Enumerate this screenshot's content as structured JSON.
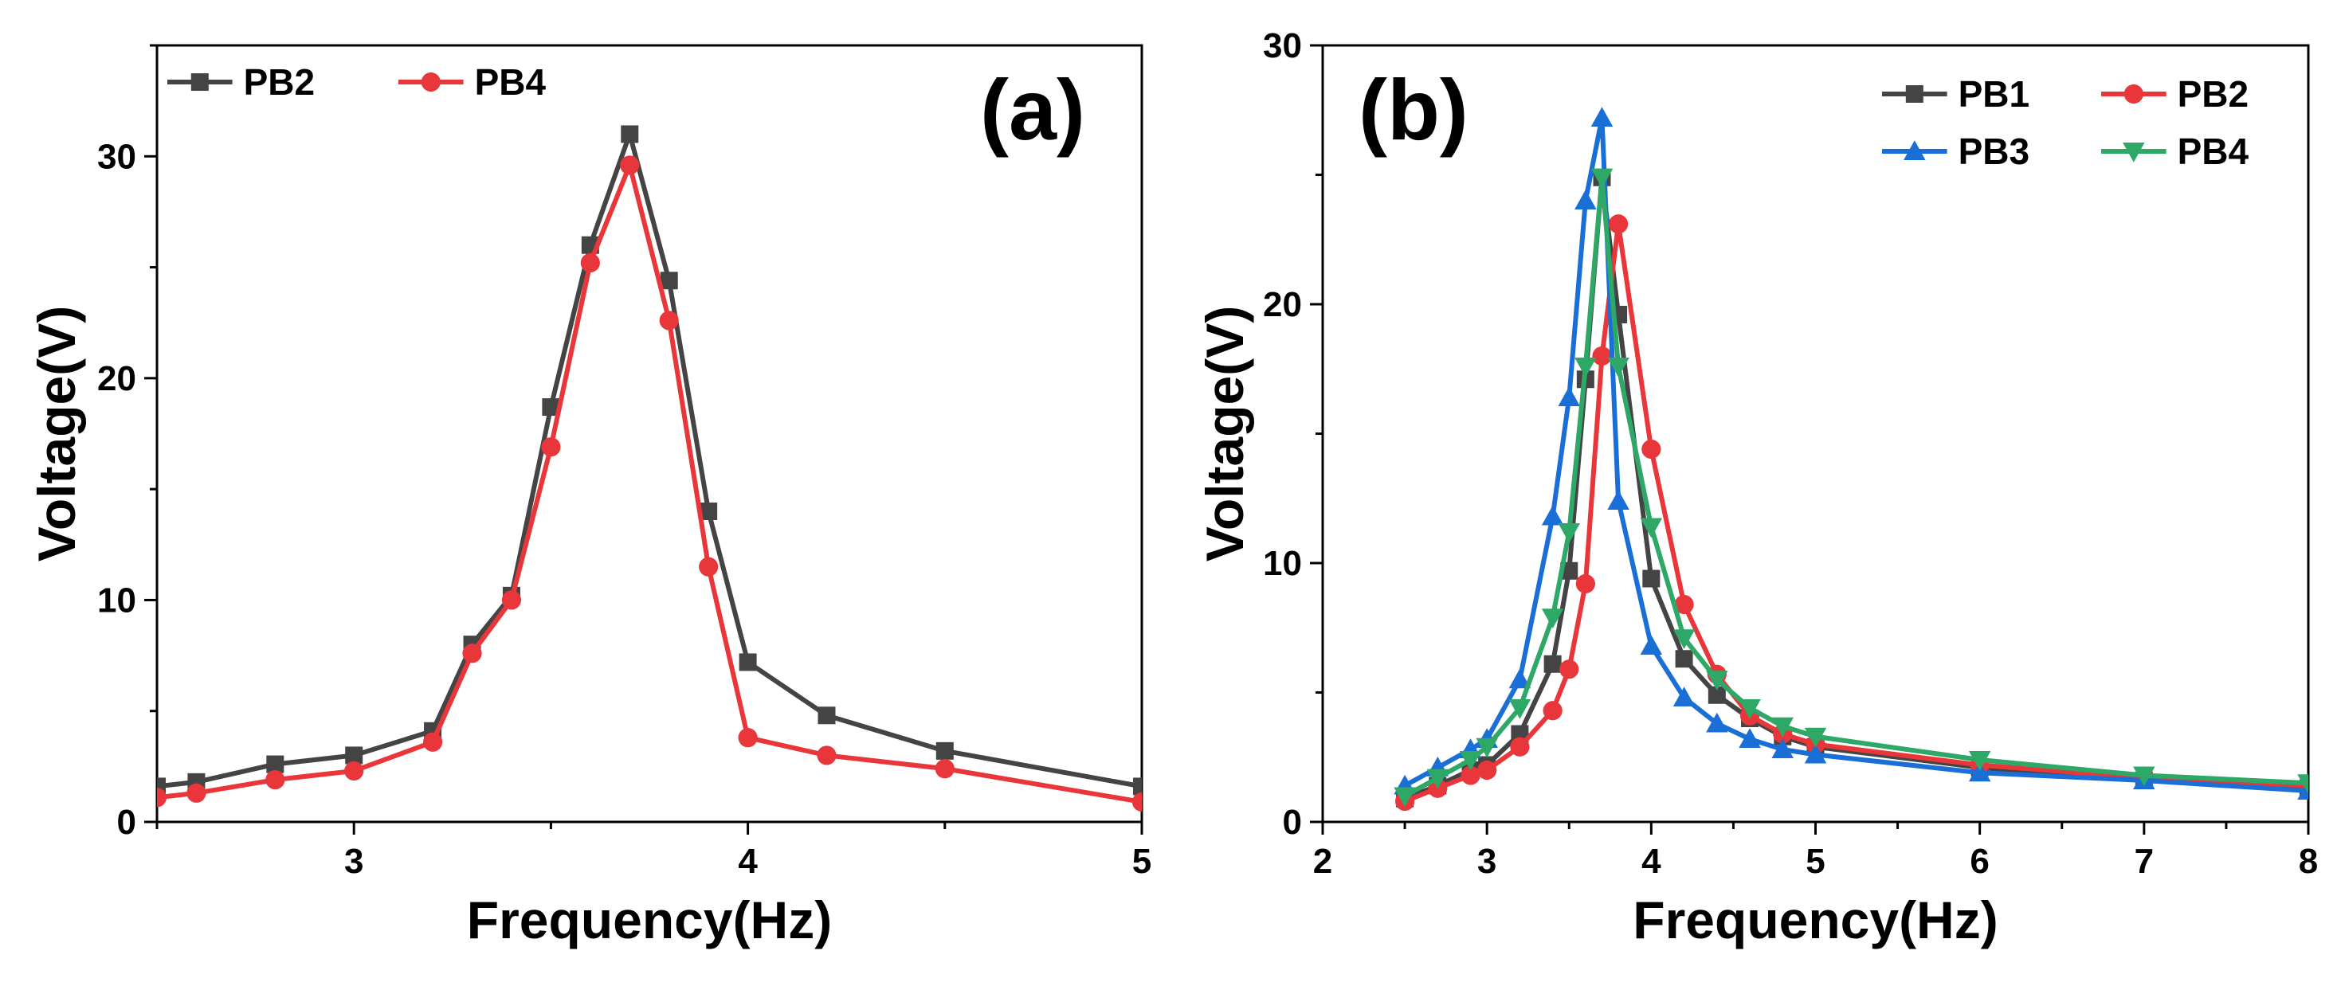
{
  "chart_data": [
    {
      "type": "line",
      "panel_label": "(a)",
      "xlabel": "Frequency(Hz)",
      "ylabel": "Voltage(V)",
      "xlim": [
        2.5,
        5.0
      ],
      "ylim": [
        0,
        35
      ],
      "xticks": [
        3,
        4,
        5
      ],
      "yticks": [
        0,
        10,
        20,
        30
      ],
      "xtick_labels": [
        "3",
        "4",
        "5"
      ],
      "ytick_labels": [
        "0",
        "10",
        "20",
        "30"
      ],
      "grid": false,
      "legend_position": "top-left",
      "legend_columns": 2,
      "series": [
        {
          "name": "PB2",
          "color": "#444444",
          "marker": "square",
          "x": [
            2.5,
            2.6,
            2.8,
            3.0,
            3.2,
            3.3,
            3.4,
            3.5,
            3.6,
            3.7,
            3.8,
            3.9,
            4.0,
            4.2,
            4.5,
            5.0
          ],
          "y": [
            1.6,
            1.8,
            2.6,
            3.0,
            4.1,
            8.0,
            10.2,
            18.7,
            26.0,
            31.0,
            24.4,
            14.0,
            7.2,
            4.8,
            3.2,
            1.6
          ]
        },
        {
          "name": "PB4",
          "color": "#e8363b",
          "marker": "circle",
          "x": [
            2.5,
            2.6,
            2.8,
            3.0,
            3.2,
            3.3,
            3.4,
            3.5,
            3.6,
            3.7,
            3.8,
            3.9,
            4.0,
            4.2,
            4.5,
            5.0
          ],
          "y": [
            1.1,
            1.3,
            1.9,
            2.3,
            3.6,
            7.6,
            10.0,
            16.9,
            25.2,
            29.6,
            22.6,
            11.5,
            3.8,
            3.0,
            2.4,
            0.9
          ]
        }
      ]
    },
    {
      "type": "line",
      "panel_label": "(b)",
      "xlabel": "Frequency(Hz)",
      "ylabel": "Voltage(V)",
      "xlim": [
        2,
        8
      ],
      "ylim": [
        0,
        30
      ],
      "xticks": [
        2,
        3,
        4,
        5,
        6,
        7,
        8
      ],
      "yticks": [
        0,
        10,
        20,
        30
      ],
      "xtick_labels": [
        "2",
        "3",
        "4",
        "5",
        "6",
        "7",
        "8"
      ],
      "ytick_labels": [
        "0",
        "10",
        "20",
        "30"
      ],
      "grid": false,
      "legend_position": "top-right",
      "legend_columns": 2,
      "series": [
        {
          "name": "PB1",
          "color": "#444444",
          "marker": "square",
          "x": [
            2.5,
            2.7,
            2.9,
            3.0,
            3.2,
            3.4,
            3.5,
            3.6,
            3.7,
            3.8,
            4.0,
            4.2,
            4.4,
            4.6,
            4.8,
            5.0,
            6.0,
            7.0,
            8.0
          ],
          "y": [
            0.9,
            1.4,
            2.0,
            2.2,
            3.4,
            6.1,
            9.7,
            17.1,
            24.9,
            19.6,
            9.4,
            6.3,
            4.9,
            4.0,
            3.3,
            2.9,
            2.1,
            1.6,
            1.3
          ]
        },
        {
          "name": "PB2",
          "color": "#e8363b",
          "marker": "circle",
          "x": [
            2.5,
            2.7,
            2.9,
            3.0,
            3.2,
            3.4,
            3.5,
            3.6,
            3.7,
            3.8,
            4.0,
            4.2,
            4.4,
            4.6,
            4.8,
            5.0,
            6.0,
            7.0,
            8.0
          ],
          "y": [
            0.8,
            1.3,
            1.8,
            2.0,
            2.9,
            4.3,
            5.9,
            9.2,
            18.0,
            23.1,
            14.4,
            8.4,
            5.7,
            4.1,
            3.4,
            3.0,
            2.2,
            1.7,
            1.4
          ]
        },
        {
          "name": "PB3",
          "color": "#1a6fd6",
          "marker": "triangle-up",
          "x": [
            2.5,
            2.7,
            2.9,
            3.0,
            3.2,
            3.4,
            3.5,
            3.6,
            3.7,
            3.8,
            4.0,
            4.2,
            4.4,
            4.6,
            4.8,
            5.0,
            6.0,
            7.0,
            8.0
          ],
          "y": [
            1.4,
            2.1,
            2.8,
            3.2,
            5.5,
            11.8,
            16.4,
            24.0,
            27.2,
            12.4,
            6.8,
            4.8,
            3.8,
            3.2,
            2.8,
            2.6,
            1.9,
            1.6,
            1.2
          ]
        },
        {
          "name": "PB4",
          "color": "#2ea866",
          "marker": "triangle-down",
          "x": [
            2.5,
            2.7,
            2.9,
            3.0,
            3.2,
            3.4,
            3.5,
            3.6,
            3.7,
            3.8,
            4.0,
            4.2,
            4.4,
            4.6,
            4.8,
            5.0,
            6.0,
            7.0,
            8.0
          ],
          "y": [
            1.0,
            1.7,
            2.4,
            2.9,
            4.4,
            7.9,
            11.2,
            17.6,
            24.9,
            17.6,
            11.4,
            7.1,
            5.5,
            4.4,
            3.7,
            3.3,
            2.4,
            1.8,
            1.5
          ]
        }
      ]
    }
  ]
}
